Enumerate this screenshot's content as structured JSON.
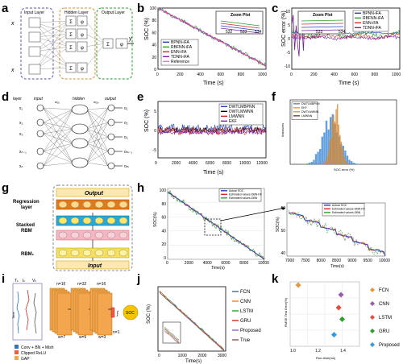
{
  "panel_letters": {
    "a": "a",
    "b": "b",
    "c": "c",
    "d": "d",
    "e": "e",
    "f": "f",
    "g": "g",
    "h": "h",
    "i": "i",
    "j": "j",
    "k": "k"
  },
  "a": {
    "input_layer": "Input Layer",
    "hidden_layer": "Hidden Layer",
    "output_layer": "Output Layer",
    "x1": "x",
    "xn": "x",
    "y": "y",
    "phi": "φ",
    "sum": "Σ"
  },
  "b": {
    "ylabel": "SOC (%)",
    "xlabel": "Time (s)",
    "zoom_title": "Zoom Plot",
    "legend": [
      "BPNN-iFA",
      "RBFNN-iFA",
      "ENN-iFA",
      "TDNN-iFA",
      "Reference"
    ],
    "legend_colors": [
      "#1f3fbf",
      "#2ca02c",
      "#d62728",
      "#7b1fa2",
      "#e377c2"
    ],
    "yticks": [
      "100",
      "80",
      "60",
      "40",
      "20",
      "0"
    ],
    "xticks": [
      "0",
      "200",
      "400",
      "600",
      "800",
      "1000"
    ],
    "zoom_xticks": [
      "532",
      "533",
      "534"
    ],
    "zoom_yticks": [
      "50",
      "49"
    ],
    "chart_data": {
      "type": "line",
      "x": [
        0,
        200,
        400,
        600,
        800,
        1000,
        1050
      ],
      "series": [
        {
          "name": "BPNN-iFA",
          "values": [
            100,
            82,
            64,
            46,
            28,
            10,
            6
          ]
        },
        {
          "name": "RBFNN-iFA",
          "values": [
            100,
            81,
            63,
            45,
            27,
            9,
            5
          ]
        },
        {
          "name": "ENN-iFA",
          "values": [
            100,
            82,
            64,
            46,
            28,
            10,
            6
          ]
        },
        {
          "name": "TDNN-iFA",
          "values": [
            100,
            82,
            64,
            46,
            28,
            10,
            6
          ]
        },
        {
          "name": "Reference",
          "values": [
            100,
            82,
            64,
            46,
            28,
            10,
            6
          ]
        }
      ],
      "xlim": [
        0,
        1050
      ],
      "ylim": [
        0,
        100
      ]
    }
  },
  "c": {
    "ylabel": "SOC error (%)",
    "xlabel": "Time (s)",
    "zoom_title": "Zoom Plot",
    "legend": [
      "BPNN-iFA",
      "RBFNN-iFA",
      "ENN-iFA",
      "TDNN-iFA"
    ],
    "legend_colors": [
      "#1f3fbf",
      "#2ca02c",
      "#d62728",
      "#7b1fa2"
    ],
    "yticks": [
      "10",
      "5",
      "0",
      "-5",
      "-10"
    ],
    "xticks": [
      "0",
      "200",
      "400",
      "600",
      "800",
      "1000"
    ],
    "zoom_xticks": [
      "533",
      "534"
    ]
  },
  "d": {
    "layer": "layer",
    "input": "input",
    "hidden": "hidden",
    "output": "output",
    "inputs": [
      "x₁",
      "x₂",
      "x₃",
      "xₙ₋₁",
      "xₙ"
    ],
    "outputs": [
      "o₁",
      "o₂",
      "o₃",
      "oₘ₋₁",
      "oₘ"
    ],
    "wl_in": "w₁ᵢⱼ",
    "wl_out": "w₂ⱼₖ"
  },
  "e": {
    "ylabel": "SOC (%)",
    "xlabel": "Time (s)",
    "legend": [
      "DWTLMBPNN",
      "DWTLMWNN",
      "LMWNN",
      "EKF"
    ],
    "legend_colors": [
      "#1f3fbf",
      "#000000",
      "#d62728",
      "#7b1fa2"
    ],
    "yticks": [
      "5",
      "0",
      "-5"
    ],
    "xticks": [
      "0",
      "2000",
      "4000",
      "6000",
      "8000",
      "10000",
      "12000"
    ]
  },
  "f": {
    "ylabel": "Instances",
    "xlabel": "SOC error (%)",
    "legend": [
      "DWTLMBPNN",
      "EKF",
      "DWTLMWNN",
      "LMWNN"
    ],
    "legend_colors": [
      "#4a90d9",
      "#e8973a",
      "#b5a46a",
      "#7a3b2e"
    ]
  },
  "g": {
    "output": "Output",
    "regression": "Regression",
    "layer": "layer",
    "stacked": "Stacked",
    "rbm": "RBM",
    "rbm1": "RBM₁",
    "input": "Input"
  },
  "h": {
    "left_ylabel": "SOC(%)",
    "left_xlabel": "Time(s)",
    "right_ylabel": "SOC(%)",
    "right_xlabel": "Time(s)",
    "legend": [
      "Actual SOC",
      "Estimated values-DBN-KF",
      "Estimated values-DBN"
    ],
    "left_yticks": [
      "100",
      "80",
      "60",
      "40",
      "20",
      "0"
    ],
    "left_xticks": [
      "0",
      "2000",
      "4000",
      "6000",
      "8000",
      "10000"
    ],
    "right_yticks": [
      "60",
      "50",
      "40"
    ],
    "right_xticks": [
      "7000",
      "7500",
      "8000",
      "8500",
      "9000",
      "9500",
      "10000"
    ]
  },
  "i": {
    "t": "Tₖ",
    "i": "Iₖ",
    "v": "Vₖ",
    "time": "Time",
    "n16a": "n=16",
    "n32": "n=32",
    "n16b": "n=16",
    "w7": "w=7",
    "w5": "w=5",
    "w3": "w=3",
    "n1": "n=1",
    "soc": "SOC",
    "legend": [
      "Conv + BN + Mish",
      "Clipped ReLU",
      "GAP"
    ]
  },
  "j": {
    "ylabel": "SOC (%)",
    "xlabel": "Time(s)",
    "legend": [
      "FCN",
      "CNN",
      "LSTM",
      "GRU",
      "Proposed",
      "True"
    ],
    "legend_colors": [
      "#1f77b4",
      "#ff7f0e",
      "#2ca02c",
      "#d62728",
      "#9467bd",
      "#8c564b"
    ],
    "xticks": [
      "0",
      "1000",
      "2000",
      "3000"
    ]
  },
  "k": {
    "ylabel": "RMSE Test Error(%)",
    "xlabel": "Run-time(ms)",
    "xticks": [
      "1.0",
      "1.2",
      "1.4"
    ],
    "chart_data": {
      "type": "scatter",
      "x": [
        1.02,
        1.39,
        1.37,
        1.4,
        1.33
      ],
      "series": [
        {
          "name": "FCN",
          "values": [
            0.95
          ]
        },
        {
          "name": "CNN",
          "values": [
            0.8
          ]
        },
        {
          "name": "LSTM",
          "values": [
            0.6
          ]
        },
        {
          "name": "GRU",
          "values": [
            0.42
          ]
        },
        {
          "name": "Proposed",
          "values": [
            0.18
          ]
        }
      ],
      "xlim": [
        0.95,
        1.55
      ]
    },
    "legend": [
      "FCN",
      "CNN",
      "LSTM",
      "GRU",
      "Proposed"
    ],
    "legend_colors": [
      "#e8973a",
      "#9b59b6",
      "#e74c3c",
      "#2ca02c",
      "#3498db"
    ]
  }
}
